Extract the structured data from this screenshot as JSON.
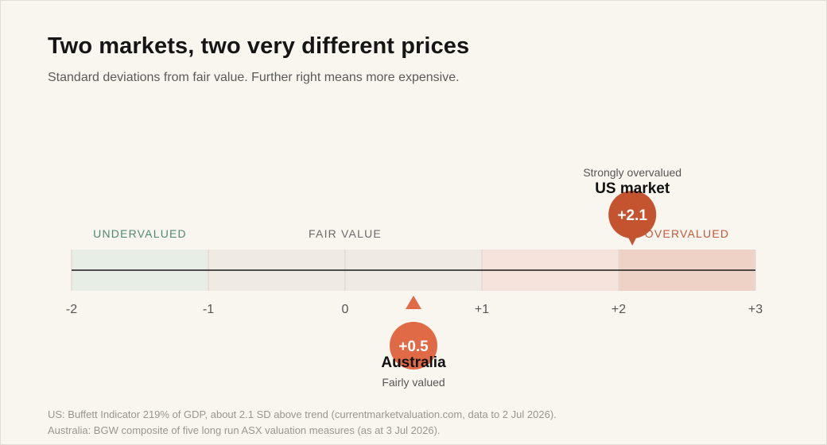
{
  "header": {
    "title": "Two markets, two very different prices",
    "subtitle": "Standard deviations from fair value. Further right means more expensive."
  },
  "chart_data": {
    "type": "scale",
    "xlim": [
      -2,
      3
    ],
    "ticks": [
      "-2",
      "-1",
      "0",
      "+1",
      "+2",
      "+3"
    ],
    "tick_values": [
      -2,
      -1,
      0,
      1,
      2,
      3
    ],
    "bands": [
      {
        "from": -2,
        "to": -1,
        "color": "#e6eee6"
      },
      {
        "from": -1,
        "to": 0,
        "color": "#efebe3"
      },
      {
        "from": 0,
        "to": 1,
        "color": "#efebe3"
      },
      {
        "from": 1,
        "to": 2,
        "color": "#f6e4dc"
      },
      {
        "from": 2,
        "to": 3,
        "color": "#efd2c6"
      }
    ],
    "zone_labels": [
      {
        "text": "UNDERVALUED",
        "at": -1.5,
        "color": "#4f8a68"
      },
      {
        "text": "FAIR VALUE",
        "at": 0,
        "color": "#6a6a6a"
      },
      {
        "text": "OVERVALUED",
        "at": 2.5,
        "color": "#c4583a"
      }
    ],
    "markers": [
      {
        "name": "US market",
        "value": 2.1,
        "value_label": "+2.1",
        "note": "Strongly overvalued",
        "side": "above",
        "color": "#c4532f"
      },
      {
        "name": "Australia",
        "value": 0.5,
        "value_label": "+0.5",
        "note": "Fairly valued",
        "side": "below",
        "color": "#df6a45"
      }
    ]
  },
  "footer": {
    "source_us": "US: Buffett Indicator 219% of GDP, about 2.1 SD above trend (currentmarketvaluation.com, data to 2 Jul 2026).",
    "source_au": "Australia: BGW composite of five long run ASX valuation measures (as at 3 Jul 2026)."
  }
}
